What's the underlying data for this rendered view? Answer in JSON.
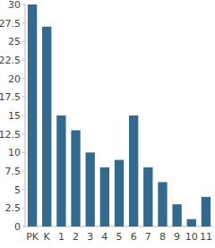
{
  "chart_data": {
    "type": "bar",
    "categories": [
      "PK",
      "K",
      "1",
      "2",
      "3",
      "4",
      "5",
      "6",
      "7",
      "8",
      "9",
      "10",
      "11"
    ],
    "values": [
      30,
      27,
      15,
      13,
      10,
      8,
      9,
      15,
      8,
      6,
      3,
      1,
      4
    ],
    "color": "#336a90",
    "ylim": [
      0,
      30
    ],
    "yticks": [
      0,
      2.5,
      5,
      7.5,
      10,
      12.5,
      15,
      17.5,
      20,
      22.5,
      25,
      27.5,
      30
    ],
    "grid": false
  }
}
